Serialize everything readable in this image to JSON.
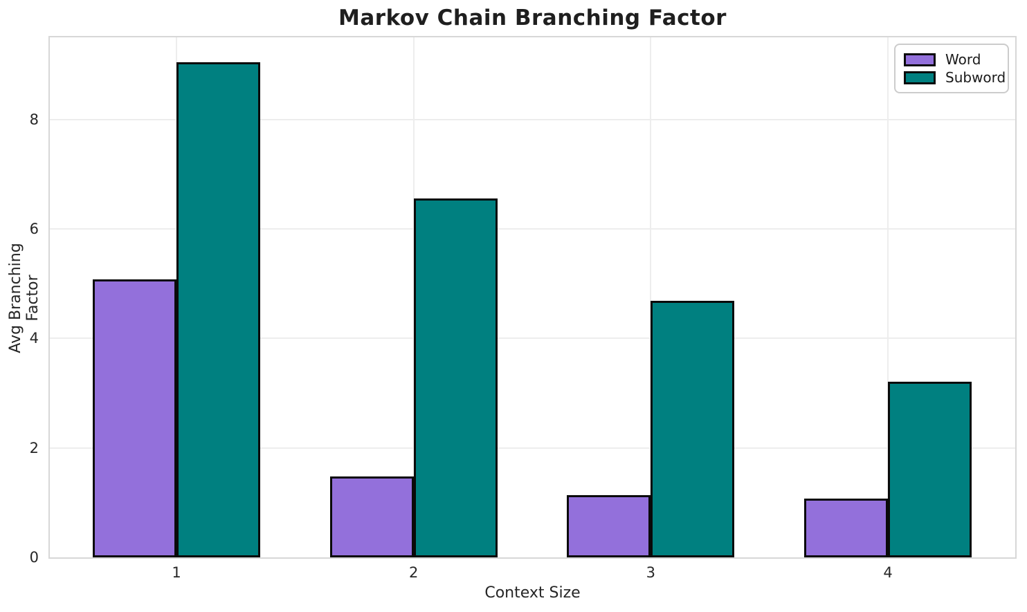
{
  "chart_data": {
    "type": "bar",
    "title": "Markov Chain Branching Factor",
    "xlabel": "Context Size",
    "ylabel": "Avg Branching Factor",
    "categories": [
      "1",
      "2",
      "3",
      "4"
    ],
    "series": [
      {
        "name": "Word",
        "color": "#9370DB",
        "values": [
          5.08,
          1.48,
          1.14,
          1.07
        ]
      },
      {
        "name": "Subword",
        "color": "#008080",
        "values": [
          9.05,
          6.56,
          4.69,
          3.21
        ]
      }
    ],
    "ylim": [
      0,
      9.5
    ],
    "yticks": [
      0,
      2,
      4,
      6,
      8
    ],
    "grid": true,
    "legend_position": "upper right",
    "bar_edge_color": "#0a0a0a",
    "background_color": "#ffffff"
  }
}
